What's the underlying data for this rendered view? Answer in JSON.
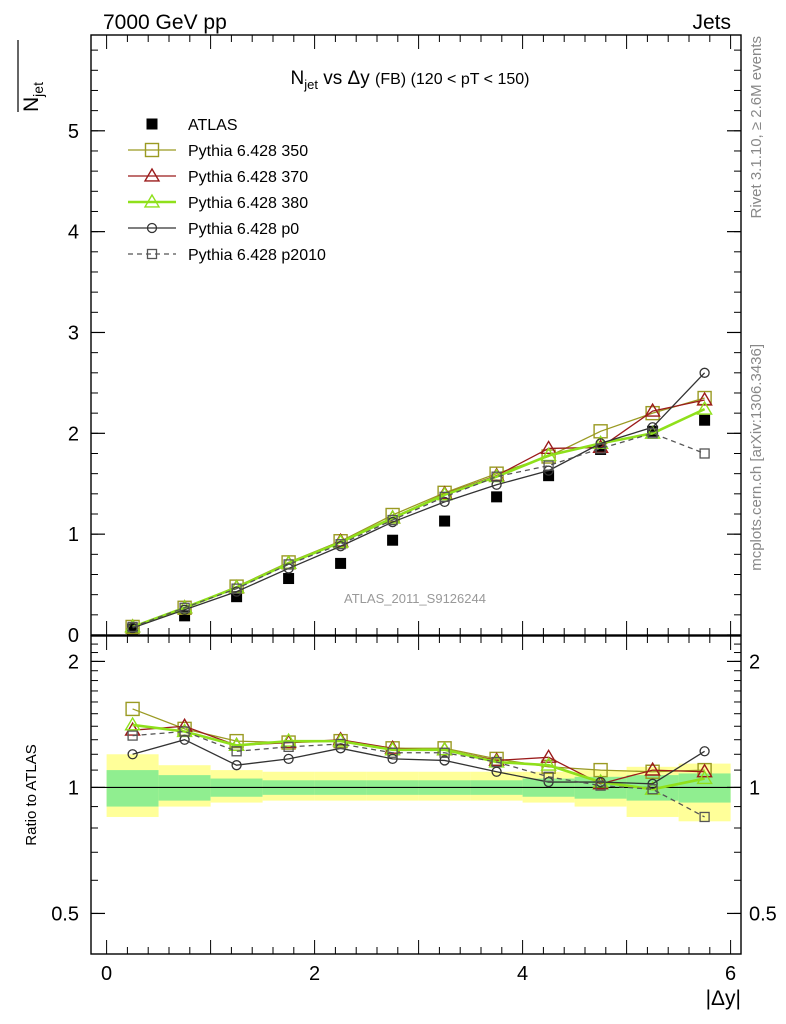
{
  "header": {
    "energy_label": "7000 GeV pp",
    "process_label": "Jets",
    "title_main": "N",
    "title_sub": "jet",
    "title_rest": " vs Δy ",
    "title_fb": "(FB)",
    "title_range": " (120 < pT < 150)",
    "ylabel_main": "N",
    "ylabel_sub": "jet",
    "ratio_ylabel": "Ratio to ATLAS",
    "xlabel": "|Δy|",
    "rivet_label": "Rivet 3.1.10, ≥ 2.6M events",
    "mcplots_label": "mcplots.cern.ch [arXiv:1306.3436]",
    "analysis_label": "ATLAS_2011_S9126244"
  },
  "colors": {
    "atlas": "#000000",
    "p350": "#9a9a22",
    "p370": "#9b1b1b",
    "p380": "#8fe01b",
    "p0": "#333333",
    "p2010": "#555555",
    "band_inner": "#90ee90",
    "band_outer": "#ffff99"
  },
  "chart_data": [
    {
      "type": "scatter",
      "panel": "main",
      "xlim": [
        -0.15,
        6.1
      ],
      "ylim": [
        0,
        5.95
      ],
      "yticks": [
        {
          "v": 0,
          "label": "0"
        },
        {
          "v": 1,
          "label": "1"
        },
        {
          "v": 2,
          "label": "2"
        },
        {
          "v": 3,
          "label": "3"
        },
        {
          "v": 4,
          "label": "4"
        },
        {
          "v": 5,
          "label": "5"
        }
      ],
      "x": [
        0.25,
        0.75,
        1.25,
        1.75,
        2.25,
        2.75,
        3.25,
        3.75,
        4.25,
        4.75,
        5.25,
        5.75
      ],
      "legend_position": "top-left",
      "series": [
        {
          "name": "ATLAS",
          "key": "atlas",
          "marker": "filled-square",
          "line": "none",
          "values": [
            0.06,
            0.19,
            0.38,
            0.56,
            0.71,
            0.94,
            1.13,
            1.37,
            1.58,
            1.84,
            2.02,
            2.13
          ]
        },
        {
          "name": "Pythia 6.428 350",
          "key": "p350",
          "marker": "open-square",
          "line": "solid",
          "values": [
            0.08,
            0.27,
            0.48,
            0.72,
            0.93,
            1.19,
            1.41,
            1.6,
            1.77,
            2.02,
            2.2,
            2.35
          ]
        },
        {
          "name": "Pythia 6.428 370",
          "key": "p370",
          "marker": "open-triangle",
          "line": "solid",
          "values": [
            0.08,
            0.27,
            0.47,
            0.71,
            0.93,
            1.16,
            1.4,
            1.58,
            1.85,
            1.86,
            2.22,
            2.33
          ]
        },
        {
          "name": "Pythia 6.428 380",
          "key": "p380",
          "marker": "open-triangle",
          "line": "solid-thick",
          "values": [
            0.08,
            0.27,
            0.47,
            0.71,
            0.92,
            1.16,
            1.39,
            1.57,
            1.78,
            1.9,
            2.0,
            2.24
          ]
        },
        {
          "name": "Pythia 6.428 p0",
          "key": "p0",
          "marker": "open-circle",
          "line": "solid",
          "values": [
            0.07,
            0.25,
            0.43,
            0.66,
            0.88,
            1.12,
            1.32,
            1.49,
            1.63,
            1.9,
            2.06,
            2.6
          ]
        },
        {
          "name": "Pythia 6.428 p2010",
          "key": "p2010",
          "marker": "open-square-small",
          "line": "dashed",
          "values": [
            0.08,
            0.27,
            0.46,
            0.7,
            0.9,
            1.14,
            1.37,
            1.57,
            1.68,
            1.85,
            2.0,
            1.8
          ]
        }
      ]
    },
    {
      "type": "scatter",
      "panel": "ratio",
      "xlim": [
        -0.15,
        6.1
      ],
      "ylim": [
        0.4,
        2.3
      ],
      "ylabel": "Ratio to ATLAS",
      "xlabel": "|Δy|",
      "yticks_left": [
        {
          "v": 0.5,
          "label": "0.5"
        },
        {
          "v": 1,
          "label": "1"
        },
        {
          "v": 2,
          "label": "2"
        }
      ],
      "yticks_right": [
        {
          "v": 0.5,
          "label": "0.5"
        },
        {
          "v": 1,
          "label": "1"
        },
        {
          "v": 2,
          "label": "2"
        }
      ],
      "xticks": [
        {
          "v": 0,
          "label": "0"
        },
        {
          "v": 2,
          "label": "2"
        },
        {
          "v": 4,
          "label": "4"
        },
        {
          "v": 6,
          "label": "6"
        }
      ],
      "bin_edges": [
        0,
        0.5,
        1,
        1.5,
        2,
        2.5,
        3,
        3.5,
        4,
        4.5,
        5,
        5.5,
        6
      ],
      "band_inner": {
        "lo": [
          0.9,
          0.93,
          0.95,
          0.96,
          0.96,
          0.96,
          0.96,
          0.96,
          0.95,
          0.94,
          0.93,
          0.92
        ],
        "hi": [
          1.1,
          1.07,
          1.05,
          1.04,
          1.04,
          1.04,
          1.04,
          1.04,
          1.05,
          1.06,
          1.07,
          1.08
        ]
      },
      "band_outer": {
        "lo": [
          0.85,
          0.9,
          0.92,
          0.93,
          0.93,
          0.93,
          0.93,
          0.93,
          0.92,
          0.9,
          0.85,
          0.83
        ],
        "hi": [
          1.2,
          1.13,
          1.1,
          1.09,
          1.09,
          1.09,
          1.09,
          1.09,
          1.09,
          1.1,
          1.12,
          1.14
        ]
      },
      "x": [
        0.25,
        0.75,
        1.25,
        1.75,
        2.25,
        2.75,
        3.25,
        3.75,
        4.25,
        4.75,
        5.25,
        5.75
      ],
      "series": [
        {
          "name": "Pythia 6.428 350",
          "key": "p350",
          "marker": "open-square",
          "line": "solid",
          "values": [
            1.54,
            1.38,
            1.29,
            1.28,
            1.29,
            1.24,
            1.24,
            1.17,
            1.12,
            1.1,
            1.09,
            1.1
          ]
        },
        {
          "name": "Pythia 6.428 370",
          "key": "p370",
          "marker": "open-triangle",
          "line": "solid",
          "values": [
            1.37,
            1.4,
            1.26,
            1.28,
            1.3,
            1.24,
            1.23,
            1.16,
            1.18,
            1.02,
            1.1,
            1.09
          ]
        },
        {
          "name": "Pythia 6.428 380",
          "key": "p380",
          "marker": "open-triangle",
          "line": "solid-thick",
          "values": [
            1.41,
            1.36,
            1.26,
            1.29,
            1.29,
            1.23,
            1.23,
            1.15,
            1.13,
            1.03,
            0.99,
            1.05
          ]
        },
        {
          "name": "Pythia 6.428 p0",
          "key": "p0",
          "marker": "open-circle",
          "line": "solid",
          "values": [
            1.2,
            1.3,
            1.13,
            1.17,
            1.24,
            1.17,
            1.16,
            1.09,
            1.03,
            1.03,
            1.02,
            1.22
          ]
        },
        {
          "name": "Pythia 6.428 p2010",
          "key": "p2010",
          "marker": "open-square-small",
          "line": "dashed",
          "values": [
            1.33,
            1.36,
            1.22,
            1.25,
            1.27,
            1.21,
            1.21,
            1.15,
            1.06,
            1.01,
            0.99,
            0.85
          ]
        }
      ]
    }
  ]
}
